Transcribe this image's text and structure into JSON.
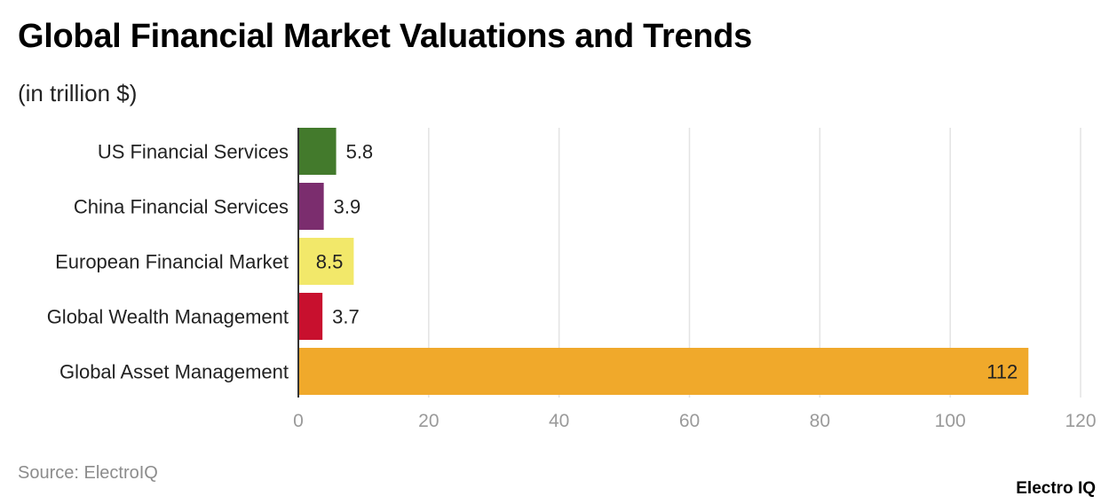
{
  "header": {
    "title": "Global Financial Market Valuations and Trends",
    "subtitle": "(in trillion $)"
  },
  "footer": {
    "source": "Source: ElectroIQ",
    "logo_text": "Electro IQ"
  },
  "chart_data": {
    "type": "bar",
    "orientation": "horizontal",
    "categories": [
      "US Financial Services",
      "China Financial Services",
      "European Financial Market",
      "Global Wealth Management",
      "Global Asset Management"
    ],
    "values": [
      5.8,
      3.9,
      8.5,
      3.7,
      112
    ],
    "value_labels": [
      "5.8",
      "3.9",
      "8.5",
      "3.7",
      "112"
    ],
    "colors": [
      "#437a2c",
      "#7b2d6e",
      "#f2e86a",
      "#c8102e",
      "#f0a92b"
    ],
    "label_inside": [
      false,
      false,
      true,
      false,
      true
    ],
    "xlim": [
      0,
      120
    ],
    "xticks": [
      0,
      20,
      40,
      60,
      80,
      100,
      120
    ],
    "grid": true
  }
}
